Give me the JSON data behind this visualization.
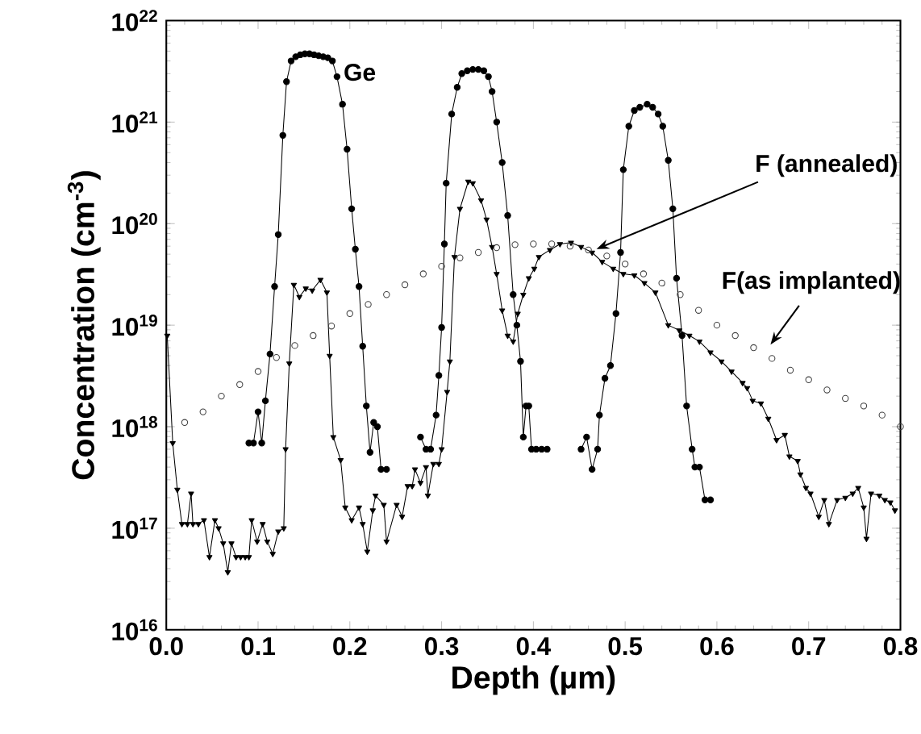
{
  "chart_data": {
    "type": "line",
    "xlabel": "Depth (µm)",
    "ylabel": "Concentration (cm$^{-3}$)",
    "log": "y",
    "xlim": [
      0,
      0.8
    ],
    "ylim": [
      1e+16,
      1e+22
    ],
    "xticks": [
      {
        "value": 0,
        "label": "0.0"
      },
      0.1,
      0.2,
      0.3,
      0.4,
      0.5,
      0.6,
      0.7,
      0.8
    ],
    "yticks": [
      {
        "value": 1e+16,
        "label": "10$^{16}$"
      },
      {
        "value": 1e+17,
        "label": "10$^{17}$"
      },
      {
        "value": 1e+18,
        "label": "10$^{18}$"
      },
      {
        "value": 1e+19,
        "label": "10$^{19}$"
      },
      {
        "value": 1e+20,
        "label": "10$^{20}$"
      },
      {
        "value": 1e+21,
        "label": "10$^{21}$"
      },
      {
        "value": 1e+22,
        "label": "10$^{22}$"
      }
    ],
    "series": [
      {
        "name": "Ge",
        "type": "line",
        "marker": "circle",
        "line_style": "solid",
        "color": "#000000",
        "x": [
          0.09,
          0.095,
          0.1,
          0.104,
          0.108,
          0.113,
          0.118,
          0.122,
          0.127,
          0.131,
          0.136,
          0.141,
          0.146,
          0.151,
          0.156,
          0.161,
          0.166,
          0.171,
          0.176,
          0.181,
          0.186,
          0.192,
          0.197,
          0.202,
          0.206,
          0.21,
          0.214,
          0.218,
          0.222,
          0.226,
          0.23,
          0.234,
          0.24,
          0.258,
          0.277,
          0.283,
          0.288,
          0.294,
          0.297,
          0.3,
          0.303,
          0.305,
          0.311,
          0.317,
          0.322,
          0.328,
          0.334,
          0.34,
          0.346,
          0.351,
          0.355,
          0.36,
          0.366,
          0.372,
          0.378,
          0.382,
          0.386,
          0.389,
          0.392,
          0.395,
          0.398,
          0.403,
          0.409,
          0.415,
          0.43,
          0.452,
          0.458,
          0.464,
          0.47,
          0.472,
          0.478,
          0.484,
          0.49,
          0.495,
          0.498,
          0.504,
          0.51,
          0.516,
          0.524,
          0.53,
          0.536,
          0.541,
          0.547,
          0.552,
          0.556,
          0.562,
          0.567,
          0.573,
          0.576,
          0.581,
          0.587,
          0.593
        ],
        "values": [
          6.9e+17,
          6.9e+17,
          1.4e+18,
          6.9e+17,
          1.8e+18,
          5.2e+18,
          2.4e+19,
          7.8e+19,
          7.4e+20,
          2.5e+21,
          4e+21,
          4.4e+21,
          4.6e+21,
          4.7e+21,
          4.7e+21,
          4.6e+21,
          4.5e+21,
          4.4e+21,
          4.3e+21,
          4e+21,
          2.8e+21,
          1.5e+21,
          5.4e+20,
          1.4e+20,
          5.6e+19,
          2.4e+19,
          6.2e+18,
          1.6e+18,
          5.6e+17,
          1.1e+18,
          1e+18,
          3.8e+17,
          3.8e+17,
          null,
          7.9e+17,
          6e+17,
          6e+17,
          1.3e+18,
          3.2e+18,
          9.5e+18,
          6.3e+19,
          2.5e+20,
          1.2e+21,
          2.2e+21,
          3e+21,
          3.2e+21,
          3.3e+21,
          3.3e+21,
          3.2e+21,
          2.8e+21,
          2e+21,
          1e+21,
          4e+20,
          1.2e+20,
          2e+19,
          1e+19,
          4.4e+18,
          7.9e+17,
          1.6e+18,
          1.6e+18,
          6e+17,
          6e+17,
          6e+17,
          6e+17,
          null,
          6e+17,
          7.9e+17,
          3.8e+17,
          6e+17,
          1.3e+18,
          3e+18,
          4e+18,
          1.3e+19,
          5.2e+19,
          3.4e+20,
          9.1e+20,
          1.3e+21,
          1.4e+21,
          1.5e+21,
          1.4e+21,
          1.2e+21,
          9.1e+20,
          4.2e+20,
          1.4e+20,
          2.9e+19,
          7.9e+18,
          1.6e+18,
          6e+17,
          4e+17,
          4e+17,
          1.9e+17,
          1.9e+17
        ]
      },
      {
        "name": "F (annealed)",
        "type": "line",
        "marker": "triangle",
        "line_style": "solid",
        "color": "#000000",
        "x": [
          0.001,
          0.007,
          0.012,
          0.017,
          0.023,
          0.027,
          0.029,
          0.035,
          0.041,
          0.047,
          0.053,
          0.057,
          0.062,
          0.067,
          0.071,
          0.076,
          0.081,
          0.086,
          0.09,
          0.093,
          0.099,
          0.105,
          0.11,
          0.116,
          0.122,
          0.128,
          0.13,
          0.134,
          0.139,
          0.145,
          0.152,
          0.159,
          0.168,
          0.175,
          0.178,
          0.182,
          0.19,
          0.195,
          0.202,
          0.21,
          0.214,
          0.219,
          0.225,
          0.228,
          0.237,
          0.24,
          0.251,
          0.257,
          0.263,
          0.268,
          0.271,
          0.277,
          0.283,
          0.285,
          0.291,
          0.297,
          0.3,
          0.306,
          0.309,
          0.314,
          0.32,
          0.329,
          0.334,
          0.343,
          0.349,
          0.355,
          0.36,
          0.366,
          0.372,
          0.378,
          0.383,
          0.389,
          0.395,
          0.401,
          0.406,
          0.418,
          0.429,
          0.441,
          0.452,
          0.464,
          0.475,
          0.487,
          0.498,
          0.51,
          0.521,
          0.533,
          0.547,
          0.559,
          0.57,
          0.581,
          0.593,
          0.605,
          0.616,
          0.628,
          0.633,
          0.639,
          0.648,
          0.656,
          0.665,
          0.674,
          0.679,
          0.688,
          0.691,
          0.697,
          0.702,
          0.711,
          0.717,
          0.722,
          0.731,
          0.74,
          0.748,
          0.754,
          0.76,
          0.763,
          0.768,
          0.777,
          0.783,
          0.789,
          0.794
        ],
        "values": [
          7.9e+18,
          6.9e+17,
          2.4e+17,
          1.1e+17,
          1.1e+17,
          2.2e+17,
          1.1e+17,
          1.1e+17,
          1.2e+17,
          5.2e+16,
          1.2e+17,
          1e+17,
          7.1e+16,
          3.7e+16,
          7.1e+16,
          5.2e+16,
          5.2e+16,
          5.2e+16,
          5.2e+16,
          1.2e+17,
          7.4e+16,
          1.1e+17,
          7.4e+16,
          5.6e+16,
          9.3e+16,
          1e+17,
          6e+17,
          4.2e+18,
          2.5e+19,
          1.9e+19,
          2.3e+19,
          2.2e+19,
          2.8e+19,
          2.1e+19,
          5e+18,
          7.9e+17,
          4.7e+17,
          1.6e+17,
          1.2e+17,
          1.6e+17,
          1.1e+17,
          5.9e+16,
          1.5e+17,
          2.1e+17,
          1.7e+17,
          7.4e+16,
          1.7e+17,
          1.3e+17,
          2.6e+17,
          2.6e+17,
          3.8e+17,
          2.8e+17,
          4e+17,
          2.1e+17,
          4.3e+17,
          4.3e+17,
          6e+17,
          2.2e+18,
          4.4e+18,
          4.7e+19,
          1.4e+20,
          2.6e+20,
          2.5e+20,
          1.7e+20,
          1.1e+20,
          5.9e+19,
          3.2e+19,
          1.4e+19,
          7.9e+18,
          6.9e+18,
          1.3e+19,
          2e+19,
          2.9e+19,
          3.6e+19,
          4.7e+19,
          5.5e+19,
          6.3e+19,
          6.5e+19,
          5.9e+19,
          5.2e+19,
          4.2e+19,
          3.6e+19,
          3.2e+19,
          3.1e+19,
          2.6e+19,
          2.1e+19,
          1e+19,
          8.9e+18,
          7.9e+18,
          6.9e+18,
          5.4e+18,
          4.4e+18,
          3.5e+18,
          2.7e+18,
          2.4e+18,
          1.8e+18,
          1.7e+18,
          1.2e+18,
          7.4e+17,
          8.3e+17,
          5.1e+17,
          4.6e+17,
          3.4e+17,
          2.5e+17,
          2.2e+17,
          1.3e+17,
          1.9e+17,
          1.1e+17,
          1.9e+17,
          2e+17,
          2.2e+17,
          2.5e+17,
          1.6e+17,
          7.9e+16,
          2.2e+17,
          2.1e+17,
          1.9e+17,
          1.8e+17,
          1.5e+17
        ]
      },
      {
        "name": "F(as implanted)",
        "type": "scatter",
        "marker": "circle",
        "color": "#404040",
        "x": [
          0.02,
          0.04,
          0.06,
          0.08,
          0.1,
          0.12,
          0.14,
          0.16,
          0.18,
          0.2,
          0.22,
          0.24,
          0.26,
          0.28,
          0.3,
          0.32,
          0.34,
          0.36,
          0.38,
          0.4,
          0.42,
          0.44,
          0.46,
          0.48,
          0.5,
          0.52,
          0.54,
          0.56,
          0.58,
          0.6,
          0.62,
          0.64,
          0.66,
          0.68,
          0.7,
          0.72,
          0.74,
          0.76,
          0.78,
          0.8
        ],
        "values": [
          1.1e+18,
          1.4e+18,
          2e+18,
          2.6e+18,
          3.5e+18,
          4.8e+18,
          6.3e+18,
          7.9e+18,
          9.8e+18,
          1.3e+19,
          1.6e+19,
          2e+19,
          2.5e+19,
          3.2e+19,
          3.8e+19,
          4.6e+19,
          5.2e+19,
          5.8e+19,
          6.2e+19,
          6.3e+19,
          6.3e+19,
          6e+19,
          5.5e+19,
          4.8e+19,
          4e+19,
          3.2e+19,
          2.6e+19,
          2e+19,
          1.4e+19,
          1e+19,
          7.9e+18,
          6e+18,
          4.7e+18,
          3.6e+18,
          2.9e+18,
          2.3e+18,
          1.9e+18,
          1.6e+18,
          1.3e+18,
          1e+18
        ]
      }
    ]
  }
}
